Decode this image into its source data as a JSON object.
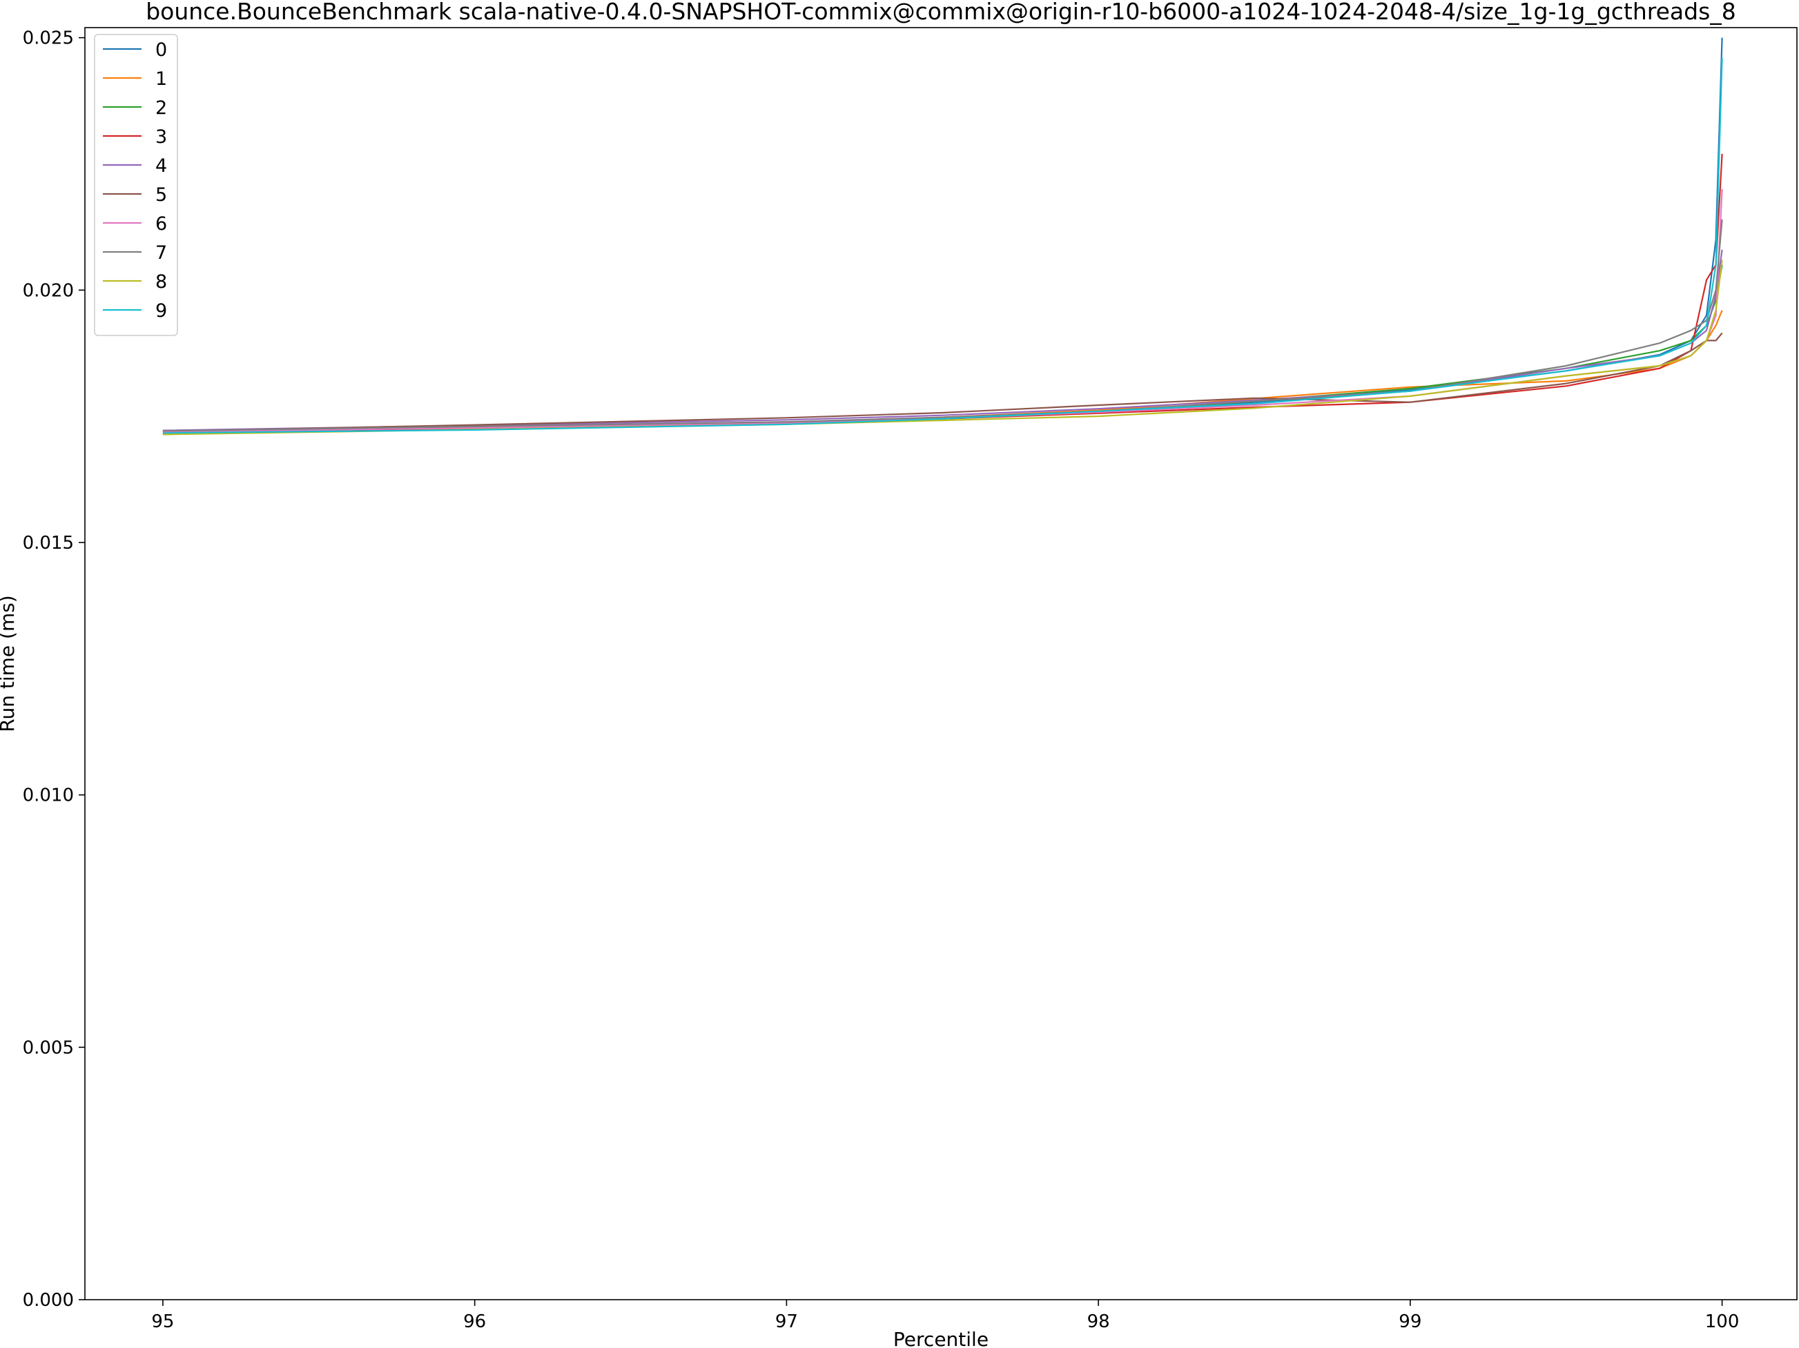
{
  "chart_data": {
    "type": "line",
    "title": "bounce.BounceBenchmark scala-native-0.4.0-SNAPSHOT-commix@commix@origin-r10-b6000-a1024-1024-2048-4/size_1g-1g_gcthreads_8",
    "xlabel": "Percentile",
    "ylabel": "Run time (ms)",
    "xlim": [
      94.75,
      100.24
    ],
    "ylim": [
      0.0,
      0.0252
    ],
    "xticks": [
      95,
      96,
      97,
      98,
      99,
      100
    ],
    "xtick_labels": [
      "95",
      "96",
      "97",
      "98",
      "99",
      "100"
    ],
    "yticks": [
      0.0,
      0.005,
      0.01,
      0.015,
      0.02,
      0.025
    ],
    "ytick_labels": [
      "0.000",
      "0.005",
      "0.010",
      "0.015",
      "0.020",
      "0.025"
    ],
    "grid": false,
    "legend_position": "top-left",
    "series": [
      {
        "name": "0",
        "color": "#1f77b4",
        "x": [
          95,
          96,
          97,
          97.5,
          98,
          98.5,
          99,
          99.5,
          99.8,
          99.9,
          99.95,
          99.98,
          100
        ],
        "y": [
          0.0172,
          0.01728,
          0.01738,
          0.01746,
          0.01758,
          0.01778,
          0.01802,
          0.0184,
          0.01872,
          0.019,
          0.0195,
          0.021,
          0.025
        ]
      },
      {
        "name": "1",
        "color": "#ff7f0e",
        "x": [
          95,
          96,
          97,
          97.5,
          98,
          98.5,
          99,
          99.5,
          99.8,
          99.9,
          99.95,
          99.98,
          100
        ],
        "y": [
          0.01715,
          0.01726,
          0.01738,
          0.01748,
          0.01762,
          0.01785,
          0.01808,
          0.0182,
          0.01845,
          0.0187,
          0.019,
          0.0193,
          0.0196
        ]
      },
      {
        "name": "2",
        "color": "#2ca02c",
        "x": [
          95,
          96,
          97,
          97.5,
          98,
          98.5,
          99,
          99.5,
          99.8,
          99.9,
          99.95,
          99.98,
          100
        ],
        "y": [
          0.01718,
          0.01727,
          0.01737,
          0.01745,
          0.01758,
          0.0178,
          0.01805,
          0.01845,
          0.0188,
          0.019,
          0.0193,
          0.0198,
          0.0205
        ]
      },
      {
        "name": "3",
        "color": "#d62728",
        "x": [
          95,
          96,
          97,
          97.5,
          98,
          98.5,
          99,
          99.5,
          99.8,
          99.9,
          99.95,
          99.98,
          100
        ],
        "y": [
          0.01717,
          0.01726,
          0.01737,
          0.01745,
          0.01756,
          0.01768,
          0.01778,
          0.0181,
          0.01845,
          0.0188,
          0.0202,
          0.0205,
          0.0227
        ]
      },
      {
        "name": "4",
        "color": "#9467bd",
        "x": [
          95,
          96,
          97,
          97.5,
          98,
          98.5,
          99,
          99.5,
          99.8,
          99.9,
          99.95,
          99.98,
          100
        ],
        "y": [
          0.01722,
          0.01732,
          0.01743,
          0.01752,
          0.01765,
          0.01782,
          0.018,
          0.01845,
          0.0187,
          0.01895,
          0.0192,
          0.0199,
          0.0208
        ]
      },
      {
        "name": "5",
        "color": "#8c564b",
        "x": [
          95,
          96,
          97,
          97.5,
          98,
          98.5,
          99,
          99.5,
          99.8,
          99.9,
          99.95,
          99.98,
          100
        ],
        "y": [
          0.0172,
          0.01733,
          0.01747,
          0.01757,
          0.01772,
          0.01786,
          0.01778,
          0.01815,
          0.0185,
          0.0188,
          0.019,
          0.019,
          0.01915
        ]
      },
      {
        "name": "6",
        "color": "#e377c2",
        "x": [
          95,
          96,
          97,
          97.5,
          98,
          98.5,
          99,
          99.5,
          99.8,
          99.9,
          99.95,
          99.98,
          100
        ],
        "y": [
          0.01719,
          0.01727,
          0.01737,
          0.01746,
          0.01758,
          0.01772,
          0.0179,
          0.0183,
          0.0185,
          0.0187,
          0.019,
          0.0195,
          0.022
        ]
      },
      {
        "name": "7",
        "color": "#7f7f7f",
        "x": [
          95,
          96,
          97,
          97.5,
          98,
          98.5,
          99,
          99.5,
          99.8,
          99.9,
          99.95,
          99.98,
          100
        ],
        "y": [
          0.01721,
          0.0173,
          0.01739,
          0.01748,
          0.0176,
          0.0178,
          0.018,
          0.0185,
          0.01895,
          0.0192,
          0.0194,
          0.02,
          0.0214
        ]
      },
      {
        "name": "8",
        "color": "#bcbd22",
        "x": [
          95,
          96,
          97,
          97.5,
          98,
          98.5,
          99,
          99.5,
          99.8,
          99.9,
          99.95,
          99.98,
          100
        ],
        "y": [
          0.01714,
          0.01724,
          0.01734,
          0.01742,
          0.0175,
          0.01766,
          0.0179,
          0.0183,
          0.0185,
          0.0187,
          0.019,
          0.0196,
          0.0206
        ]
      },
      {
        "name": "9",
        "color": "#17becf",
        "x": [
          95,
          96,
          97,
          97.5,
          98,
          98.5,
          99,
          99.5,
          99.8,
          99.9,
          99.95,
          99.98,
          100
        ],
        "y": [
          0.01717,
          0.01723,
          0.01734,
          0.01745,
          0.0176,
          0.01775,
          0.018,
          0.0184,
          0.0187,
          0.01895,
          0.0193,
          0.0205,
          0.0246
        ]
      }
    ]
  }
}
